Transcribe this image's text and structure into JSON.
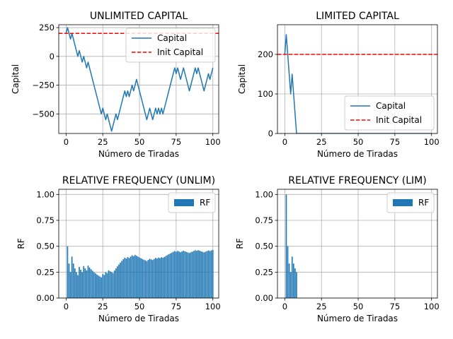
{
  "chart_data": [
    {
      "type": "line",
      "title": "UNLIMITED CAPITAL",
      "xlabel": "Número de Tiradas",
      "ylabel": "Capital",
      "xlim": [
        -5,
        104
      ],
      "ylim": [
        -670,
        275
      ],
      "xticks": [
        0,
        25,
        50,
        75,
        100
      ],
      "yticks": [
        250,
        0,
        -250,
        -500
      ],
      "ytick_labels": [
        "250",
        "0",
        "−250",
        "−500"
      ],
      "grid": true,
      "legend_position": "upper-right",
      "series": [
        {
          "name": "Capital",
          "color": "#1f77b4",
          "style": "solid",
          "values": [
            200,
            250,
            200,
            150,
            200,
            150,
            100,
            50,
            0,
            50,
            0,
            -50,
            0,
            -50,
            -100,
            -50,
            -100,
            -150,
            -200,
            -250,
            -300,
            -350,
            -400,
            -450,
            -500,
            -450,
            -500,
            -550,
            -500,
            -550,
            -600,
            -650,
            -600,
            -550,
            -500,
            -550,
            -500,
            -450,
            -400,
            -350,
            -300,
            -350,
            -300,
            -350,
            -300,
            -250,
            -300,
            -250,
            -200,
            -250,
            -300,
            -350,
            -400,
            -450,
            -500,
            -550,
            -500,
            -450,
            -500,
            -550,
            -500,
            -450,
            -500,
            -450,
            -500,
            -450,
            -500,
            -450,
            -400,
            -350,
            -300,
            -250,
            -200,
            -150,
            -100,
            -150,
            -100,
            -150,
            -200,
            -150,
            -100,
            -150,
            -200,
            -250,
            -300,
            -250,
            -200,
            -150,
            -100,
            -150,
            -100,
            -150,
            -200,
            -250,
            -300,
            -250,
            -200,
            -150,
            -200,
            -150,
            -100
          ]
        },
        {
          "name": "Init Capital",
          "color": "#ff0000",
          "style": "dashed",
          "constant": 200
        }
      ]
    },
    {
      "type": "line",
      "title": "LIMITED CAPITAL",
      "xlabel": "Número de Tiradas",
      "ylabel": "Capital",
      "xlim": [
        -5,
        104
      ],
      "ylim": [
        0,
        275
      ],
      "xticks": [
        0,
        25,
        50,
        75,
        100
      ],
      "yticks": [
        0,
        100,
        200
      ],
      "ytick_labels": [
        "0",
        "100",
        "200"
      ],
      "grid": true,
      "legend_position": "lower-right",
      "series": [
        {
          "name": "Capital",
          "color": "#1f77b4",
          "style": "solid",
          "values": [
            200,
            250,
            200,
            150,
            100,
            150,
            100,
            50,
            0,
            0,
            0,
            0,
            0,
            0,
            0,
            0,
            0,
            0,
            0,
            0,
            0,
            0,
            0,
            0,
            0,
            0,
            0,
            0,
            0,
            0,
            0,
            0,
            0,
            0,
            0,
            0,
            0,
            0,
            0,
            0,
            0,
            0,
            0,
            0,
            0,
            0,
            0,
            0,
            0,
            0,
            0,
            0,
            0,
            0,
            0,
            0,
            0,
            0,
            0,
            0,
            0,
            0,
            0,
            0,
            0,
            0,
            0,
            0,
            0,
            0,
            0,
            0,
            0,
            0,
            0,
            0,
            0,
            0,
            0,
            0,
            0,
            0,
            0,
            0,
            0,
            0,
            0,
            0,
            0,
            0,
            0,
            0,
            0,
            0,
            0,
            0,
            0,
            0,
            0,
            0,
            0
          ]
        },
        {
          "name": "Init Capital",
          "color": "#ff0000",
          "style": "dashed",
          "constant": 200
        }
      ]
    },
    {
      "type": "bar",
      "title": "RELATIVE FREQUENCY (UNLIM)",
      "xlabel": "Número de Tiradas",
      "ylabel": "RF",
      "xlim": [
        -5,
        104
      ],
      "ylim": [
        0,
        1.05
      ],
      "xticks": [
        0,
        25,
        50,
        75,
        100
      ],
      "yticks": [
        0,
        0.25,
        0.5,
        0.75,
        1.0
      ],
      "ytick_labels": [
        "0.00",
        "0.25",
        "0.50",
        "0.75",
        "1.00"
      ],
      "grid": true,
      "legend_position": "upper-right",
      "series": [
        {
          "name": "RF",
          "color": "#1f77b4",
          "values": [
            0.5,
            0.333,
            0.25,
            0.4,
            0.333,
            0.286,
            0.25,
            0.222,
            0.3,
            0.273,
            0.25,
            0.308,
            0.286,
            0.267,
            0.313,
            0.294,
            0.278,
            0.263,
            0.25,
            0.238,
            0.227,
            0.217,
            0.208,
            0.2,
            0.231,
            0.222,
            0.25,
            0.241,
            0.267,
            0.258,
            0.25,
            0.242,
            0.265,
            0.286,
            0.306,
            0.324,
            0.342,
            0.359,
            0.375,
            0.39,
            0.381,
            0.395,
            0.386,
            0.4,
            0.413,
            0.404,
            0.417,
            0.408,
            0.4,
            0.392,
            0.385,
            0.377,
            0.37,
            0.364,
            0.357,
            0.368,
            0.379,
            0.373,
            0.367,
            0.377,
            0.387,
            0.381,
            0.391,
            0.385,
            0.394,
            0.388,
            0.397,
            0.406,
            0.414,
            0.423,
            0.431,
            0.438,
            0.446,
            0.453,
            0.447,
            0.455,
            0.449,
            0.442,
            0.45,
            0.457,
            0.451,
            0.446,
            0.44,
            0.435,
            0.442,
            0.448,
            0.455,
            0.461,
            0.456,
            0.462,
            0.457,
            0.451,
            0.446,
            0.441,
            0.447,
            0.453,
            0.459,
            0.454,
            0.46,
            0.465
          ]
        }
      ]
    },
    {
      "type": "bar",
      "title": "RELATIVE FREQUENCY (LIM)",
      "xlabel": "Número de Tiradas",
      "ylabel": "RF",
      "xlim": [
        -5,
        104
      ],
      "ylim": [
        0,
        1.05
      ],
      "xticks": [
        0,
        25,
        50,
        75,
        100
      ],
      "yticks": [
        0,
        0.25,
        0.5,
        0.75,
        1.0
      ],
      "ytick_labels": [
        "0.00",
        "0.25",
        "0.50",
        "0.75",
        "1.00"
      ],
      "grid": true,
      "legend_position": "upper-right",
      "series": [
        {
          "name": "RF",
          "color": "#1f77b4",
          "values": [
            1.0,
            0.5,
            0.333,
            0.25,
            0.4,
            0.333,
            0.286,
            0.25
          ]
        }
      ]
    }
  ]
}
